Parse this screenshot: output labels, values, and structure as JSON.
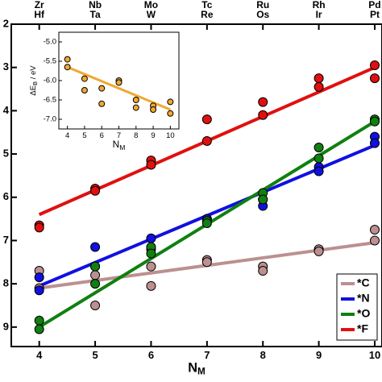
{
  "chart_data": [
    {
      "type": "scatter",
      "x_label": "N",
      "x_label_sub": "M",
      "xlim": [
        3.5,
        10.13
      ],
      "xticks": [
        4,
        5,
        6,
        7,
        8,
        9,
        10
      ],
      "ylim": [
        -9.45,
        -2
      ],
      "yticks": [
        {
          "value": -2,
          "label": "2"
        },
        {
          "value": -3,
          "label": "3"
        },
        {
          "value": -4,
          "label": "4"
        },
        {
          "value": -5,
          "label": "5"
        },
        {
          "value": -6,
          "label": "6"
        },
        {
          "value": -7,
          "label": "7"
        },
        {
          "value": -8,
          "label": "8"
        },
        {
          "value": -9,
          "label": "9"
        }
      ],
      "top_labels": [
        [
          "Zr",
          "Hf"
        ],
        [
          "Nb",
          "Ta"
        ],
        [
          "Mo",
          "W"
        ],
        [
          "Tc",
          "Re"
        ],
        [
          "Ru",
          "Os"
        ],
        [
          "Rh",
          "Ir"
        ],
        [
          "Pd",
          "Pt"
        ]
      ],
      "legend": "lower right",
      "series": [
        {
          "name": "*C",
          "color": "#bc9090",
          "x": [
            4,
            4,
            5,
            5,
            6,
            6,
            7,
            7,
            8,
            8,
            9,
            9,
            10,
            10
          ],
          "values": [
            -7.7,
            -8.1,
            -7.8,
            -8.5,
            -7.6,
            -8.05,
            -7.45,
            -7.5,
            -7.6,
            -7.7,
            -7.2,
            -7.25,
            -6.75,
            -7.0
          ],
          "fit": {
            "x": [
              4,
              10
            ],
            "y": [
              -8.1,
              -7.05
            ]
          }
        },
        {
          "name": "*N",
          "color": "#1010e0",
          "x": [
            4,
            4,
            5,
            5,
            6,
            6,
            7,
            7,
            8,
            8,
            9,
            9,
            10,
            10
          ],
          "values": [
            -7.85,
            -8.15,
            -7.15,
            -7.6,
            -6.95,
            -7.2,
            -6.5,
            -6.5,
            -6.05,
            -6.2,
            -5.3,
            -5.4,
            -4.6,
            -4.75
          ],
          "fit": {
            "x": [
              4,
              10
            ],
            "y": [
              -8.05,
              -4.8
            ]
          }
        },
        {
          "name": "*O",
          "color": "#108010",
          "x": [
            4,
            4,
            5,
            5,
            6,
            6,
            7,
            7,
            8,
            8,
            9,
            9,
            10,
            10
          ],
          "values": [
            -8.85,
            -9.05,
            -7.6,
            -8.0,
            -7.15,
            -7.3,
            -6.55,
            -6.6,
            -5.9,
            -6.05,
            -4.85,
            -5.1,
            -4.2,
            -4.25
          ],
          "fit": {
            "x": [
              4,
              10
            ],
            "y": [
              -9.0,
              -4.25
            ]
          }
        },
        {
          "name": "*F",
          "color": "#e01010",
          "x": [
            4,
            4,
            5,
            5,
            6,
            6,
            7,
            7,
            8,
            8,
            9,
            9,
            10,
            10
          ],
          "values": [
            -6.65,
            -6.7,
            -5.8,
            -5.85,
            -5.15,
            -5.25,
            -4.2,
            -4.7,
            -3.8,
            -4.1,
            -3.25,
            -3.45,
            -2.95,
            -3.25
          ],
          "fit": {
            "x": [
              4,
              10
            ],
            "y": [
              -6.4,
              -3.0
            ]
          }
        }
      ]
    },
    {
      "type": "scatter",
      "x_label": "N",
      "x_label_sub": "M",
      "y_label": "ΔE",
      "y_label_sub": "B",
      "y_label_unit": " / eV",
      "xlim": [
        3.5,
        10.5
      ],
      "xticks": [
        4,
        5,
        6,
        7,
        8,
        9,
        10
      ],
      "ylim": [
        -7.25,
        -4.75
      ],
      "yticks": [
        {
          "value": -5,
          "label": "-5.0"
        },
        {
          "value": -5.5,
          "label": "-5.5"
        },
        {
          "value": -6,
          "label": "-6.0"
        },
        {
          "value": -6.5,
          "label": "-6.5"
        },
        {
          "value": -7,
          "label": "-7.0"
        }
      ],
      "series": [
        {
          "color": "#f0a830",
          "x": [
            4,
            4,
            5,
            5,
            6,
            6,
            7,
            7,
            8,
            8,
            9,
            9,
            10,
            10
          ],
          "values": [
            -5.45,
            -5.65,
            -5.95,
            -6.25,
            -6.2,
            -6.6,
            -6.0,
            -6.05,
            -6.5,
            -6.7,
            -6.65,
            -6.75,
            -6.55,
            -6.85
          ],
          "fit": {
            "x": [
              4,
              10
            ],
            "y": [
              -5.65,
              -6.75
            ]
          }
        }
      ]
    }
  ]
}
